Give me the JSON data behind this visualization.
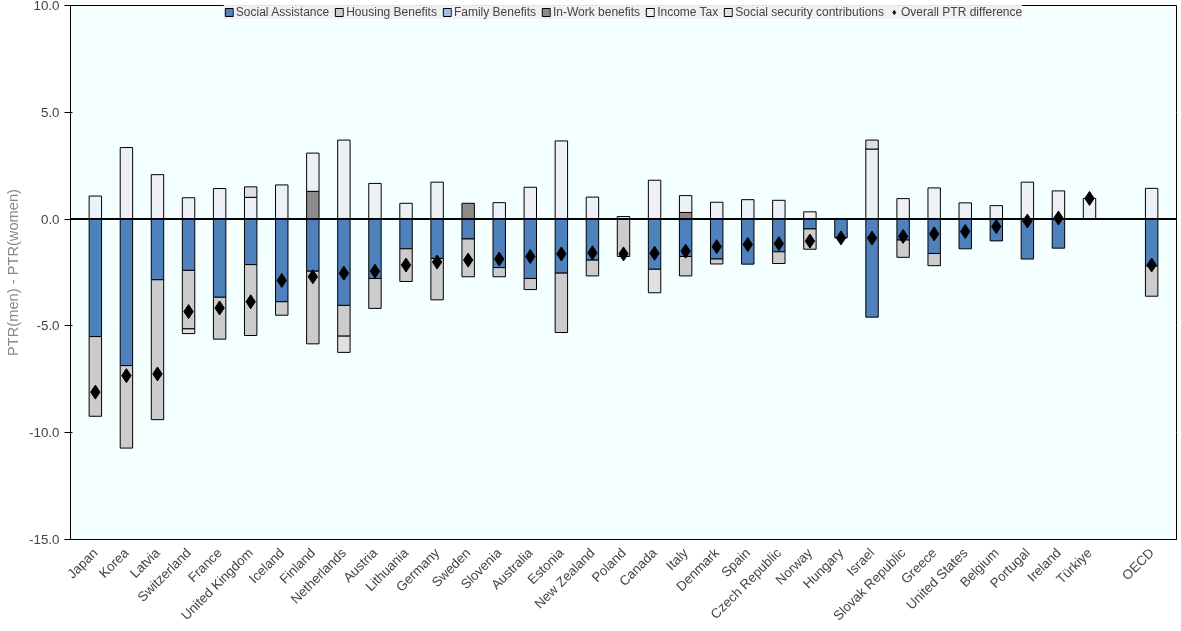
{
  "chart_data": {
    "type": "bar",
    "stacked": true,
    "ylabel": "PTR(men) - PTR(women)",
    "categories": [
      "Japan",
      "Korea",
      "Latvia",
      "Switzerland",
      "France",
      "United Kingdom",
      "Iceland",
      "Finland",
      "Netherlands",
      "Austria",
      "Lithuania",
      "Germany",
      "Sweden",
      "Slovenia",
      "Australia",
      "Estonia",
      "New Zealand",
      "Poland",
      "Canada",
      "Italy",
      "Denmark",
      "Spain",
      "Czech Republic",
      "Norway",
      "Hungary",
      "Israel",
      "Slovak Republic",
      "Greece",
      "United States",
      "Belgium",
      "Portugal",
      "Ireland",
      "Türkiye",
      null,
      "OECD"
    ],
    "series": [
      {
        "name": "Social Assistance",
        "color": "#4f81bd",
        "values": [
          -5.5,
          -6.86,
          -2.84,
          -2.4,
          -3.66,
          -2.13,
          -3.87,
          -2.44,
          -4.04,
          -2.78,
          -1.39,
          -1.84,
          -0.93,
          -2.27,
          -2.78,
          -2.53,
          -1.92,
          null,
          -2.35,
          -1.75,
          -1.87,
          -2.11,
          -1.53,
          -0.46,
          -0.88,
          -4.59,
          -0.98,
          -1.61,
          -1.39,
          -1.02,
          -1.87,
          -1.36,
          null,
          null,
          -2.2
        ]
      },
      {
        "name": "Housing Benefits",
        "color": "#cccccc",
        "values": [
          -3.73,
          -3.86,
          -6.55,
          -2.74,
          -1.96,
          -3.32,
          -0.63,
          -3.4,
          -1.44,
          -1.4,
          -1.53,
          -1.94,
          -1.77,
          -0.43,
          -0.52,
          -2.78,
          -0.74,
          -1.75,
          null,
          -0.91,
          -0.23,
          null,
          -0.55,
          -0.95,
          null,
          null,
          -0.81,
          -0.57,
          null,
          null,
          null,
          null,
          null,
          null,
          -1.41
        ]
      },
      {
        "name": "Family Benefits",
        "color": "#a6bde0",
        "values": [
          null,
          null,
          null,
          null,
          null,
          null,
          null,
          null,
          null,
          null,
          null,
          null,
          null,
          null,
          null,
          null,
          null,
          null,
          null,
          null,
          null,
          null,
          null,
          null,
          null,
          null,
          null,
          null,
          null,
          null,
          null,
          null,
          null,
          null,
          null
        ]
      },
      {
        "name": "In-Work benefits",
        "color": "#8c8c8c",
        "values": [
          null,
          null,
          null,
          null,
          null,
          null,
          null,
          1.3,
          null,
          null,
          null,
          null,
          0.74,
          null,
          null,
          null,
          null,
          null,
          null,
          0.31,
          null,
          null,
          null,
          null,
          null,
          null,
          null,
          null,
          null,
          null,
          null,
          null,
          null,
          null,
          null
        ]
      },
      {
        "name": "Income Tax",
        "color": "#eef0f8",
        "values": [
          1.08,
          3.35,
          2.08,
          1.0,
          1.43,
          1.02,
          1.6,
          1.79,
          3.7,
          1.67,
          0.74,
          1.73,
          null,
          0.77,
          1.49,
          3.66,
          1.03,
          0.12,
          1.82,
          0.79,
          0.79,
          0.91,
          0.88,
          0.34,
          null,
          3.28,
          0.96,
          1.46,
          0.76,
          0.63,
          1.73,
          1.32,
          0.97,
          null,
          1.44
        ]
      },
      {
        "name": "Social security contributions",
        "color": "#e0e0e0",
        "values": [
          null,
          null,
          null,
          -0.22,
          null,
          0.49,
          null,
          null,
          -0.76,
          null,
          null,
          null,
          null,
          null,
          null,
          null,
          null,
          null,
          -1.1,
          null,
          null,
          null,
          null,
          null,
          null,
          0.42,
          null,
          null,
          null,
          null,
          null,
          null,
          null,
          null,
          null
        ]
      },
      {
        "name": "Overall PTR difference",
        "type": "scatter",
        "marker": "diamond",
        "color": "#000000",
        "values": [
          -8.1,
          -7.33,
          -7.25,
          -4.33,
          -4.16,
          -3.87,
          -2.87,
          -2.7,
          -2.53,
          -2.44,
          -2.15,
          -2.01,
          -1.92,
          -1.87,
          -1.75,
          -1.63,
          -1.58,
          -1.63,
          -1.6,
          -1.5,
          -1.29,
          -1.19,
          -1.15,
          -1.03,
          -0.88,
          -0.89,
          -0.81,
          -0.69,
          -0.58,
          -0.35,
          -0.09,
          0.05,
          0.97,
          null,
          -2.15
        ]
      }
    ],
    "ylim": [
      -15,
      10
    ],
    "yticks": [
      {
        "value": -15,
        "label": "-15.0"
      },
      {
        "value": -10,
        "label": "-10.0"
      },
      {
        "value": -5,
        "label": "-5.0"
      },
      {
        "value": 0,
        "label": "0.0"
      },
      {
        "value": 5,
        "label": "5.0"
      },
      {
        "value": 10,
        "label": "10.0"
      }
    ],
    "ref_lines": [
      {
        "axis": "y",
        "value": 0,
        "color": "#000000"
      }
    ],
    "grid": "y",
    "legend": "top"
  }
}
